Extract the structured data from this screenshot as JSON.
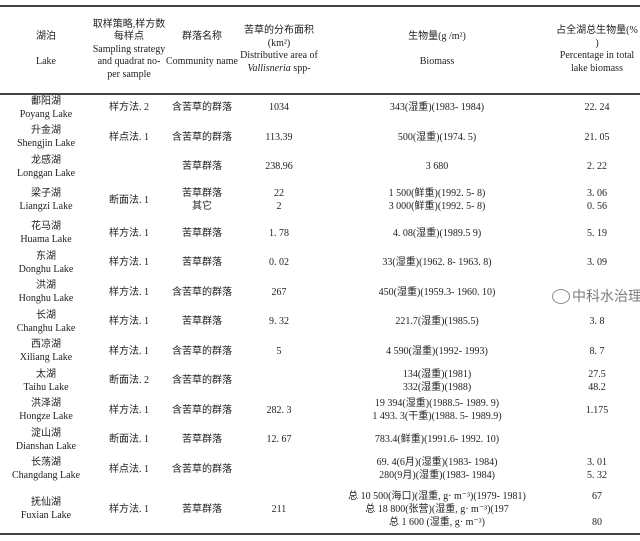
{
  "headers": {
    "lake": {
      "zh": "湖泊",
      "en": "Lake"
    },
    "strategy": {
      "zh": "取样策略,样方数 每样点",
      "en": "Sampling strategy and quadrat no- per sample"
    },
    "community": {
      "zh": "群落名称",
      "en": "Community name"
    },
    "area": {
      "zh": "苦草的分布面积 (km²)",
      "en1": "Distributive area of",
      "en2": "Vallisneria",
      "en3": "spp-"
    },
    "biomass": {
      "zh": "生物量(g /m²)",
      "en": "Biomass"
    },
    "percent": {
      "zh": "占全湖总生物量(% )",
      "en": "Percentage in total lake biomass"
    }
  },
  "rows": [
    {
      "zh": "鄱阳湖",
      "en": "Poyang Lake",
      "strategy": "样方法. 2",
      "community": [
        "含苦草的群落"
      ],
      "area": [
        "1034"
      ],
      "biomass": [
        "343(湿重)(1983- 1984)"
      ],
      "percent": [
        "22. 24"
      ]
    },
    {
      "zh": "升金湖",
      "en": "Shengjin Lake",
      "strategy": "样点法. 1",
      "community": [
        "含苦草的群落"
      ],
      "area": [
        "113.39"
      ],
      "biomass": [
        "500(湿重)(1974. 5)"
      ],
      "percent": [
        "21. 05"
      ]
    },
    {
      "zh": "龙感湖",
      "en": "Longgan Lake",
      "strategy": "",
      "community": [
        "苦草群落"
      ],
      "area": [
        "238.96"
      ],
      "biomass": [
        "3 680"
      ],
      "percent": [
        "2. 22"
      ]
    },
    {
      "zh": "梁子湖",
      "en": "Liangzi Lake",
      "strategy": "断面法. 1",
      "community": [
        "苦草群落",
        "其它"
      ],
      "area": [
        "22",
        "2"
      ],
      "biomass": [
        "1 500(鲜重)(1992. 5- 8)",
        "3 000(鲜重)(1992. 5- 8)"
      ],
      "percent": [
        "3. 06",
        "0. 56"
      ]
    },
    {
      "zh": "花马湖",
      "en": "Huama Lake",
      "strategy": "样方法. 1",
      "community": [
        "苦草群落"
      ],
      "area": [
        "1. 78"
      ],
      "biomass": [
        "4. 08(湿重)(1989.5 9)"
      ],
      "percent": [
        "5. 19"
      ]
    },
    {
      "zh": "东湖",
      "en": "Donghu Lake",
      "strategy": "样方法. 1",
      "community": [
        "苦草群落"
      ],
      "area": [
        "0. 02"
      ],
      "biomass": [
        "33(湿重)(1962. 8- 1963. 8)"
      ],
      "percent": [
        "3. 09"
      ]
    },
    {
      "zh": "洪湖",
      "en": "Honghu Lake",
      "strategy": "样方法. 1",
      "community": [
        "含苦草的群落"
      ],
      "area": [
        "267"
      ],
      "biomass": [
        "450(湿重)(1959.3- 1960. 10)"
      ],
      "percent": [
        ""
      ]
    },
    {
      "zh": "长湖",
      "en": "Changhu Lake",
      "strategy": "样方法. 1",
      "community": [
        "苦草群落"
      ],
      "area": [
        "9. 32"
      ],
      "biomass": [
        "221.7(湿重)(1985.5)"
      ],
      "percent": [
        "3. 8"
      ]
    },
    {
      "zh": "西凉湖",
      "en": "Xiliang Lake",
      "strategy": "样方法. 1",
      "community": [
        "含苦草的群落"
      ],
      "area": [
        "5"
      ],
      "biomass": [
        "4 590(湿重)(1992- 1993)"
      ],
      "percent": [
        "8. 7"
      ]
    },
    {
      "zh": "太湖",
      "en": "Taihu Lake",
      "strategy": "断面法. 2",
      "community": [
        "含苦草的群落"
      ],
      "area": [
        ""
      ],
      "biomass": [
        "134(湿重)(1981)",
        "332(湿重)(1988)"
      ],
      "percent": [
        "27.5",
        "48.2"
      ]
    },
    {
      "zh": "洪泽湖",
      "en": "Hongze Lake",
      "strategy": "样方法. 1",
      "community": [
        "含苦草的群落"
      ],
      "area": [
        "282. 3"
      ],
      "biomass": [
        "19 394(湿重)(1988.5- 1989. 9)",
        "1 493. 3(干重)(1988. 5- 1989.9)"
      ],
      "percent": [
        "1.175"
      ]
    },
    {
      "zh": "淀山湖",
      "en": "Dianshan Lake",
      "strategy": "断面法. 1",
      "community": [
        "苦草群落"
      ],
      "area": [
        "12. 67"
      ],
      "biomass": [
        "783.4(鲜重)(1991.6- 1992. 10)"
      ],
      "percent": [
        ""
      ]
    },
    {
      "zh": "长荡湖",
      "en": "Changdang Lake",
      "strategy": "样点法. 1",
      "community": [
        "含苦草的群落"
      ],
      "area": [
        ""
      ],
      "biomass": [
        "69. 4(6月)(湿重)(1983- 1984)",
        "280(9月)(湿重)(1983- 1984)"
      ],
      "percent": [
        "3. 01",
        "5. 32"
      ]
    },
    {
      "zh": "抚仙湖",
      "en": "Fuxian Lake",
      "strategy": "样方法. 1",
      "community": [
        "苦草群落"
      ],
      "area": [
        "211"
      ],
      "biomass": [
        "总 10 500(海口)(湿重, g· m⁻³)(1979- 1981)",
        "总 18 800(张营)(湿重, g· m⁻³)(197",
        "总 1 600 (湿重, g· m⁻³)"
      ],
      "percent": [
        "67",
        "",
        "80"
      ]
    }
  ],
  "watermark": "中科水治理"
}
